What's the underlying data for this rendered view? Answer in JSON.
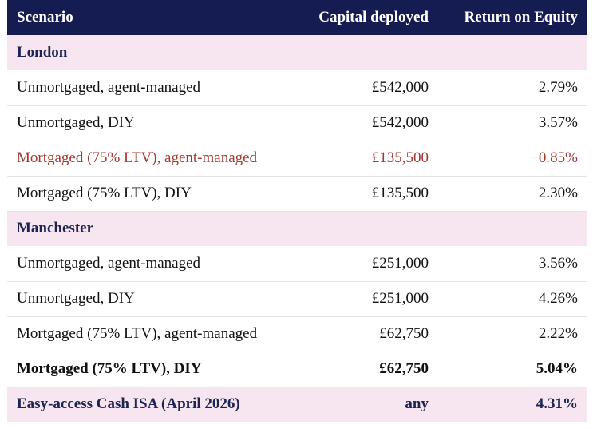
{
  "header": {
    "scenario": "Scenario",
    "capital": "Capital deployed",
    "roe": "Return on Equity"
  },
  "groups": [
    {
      "name": "London",
      "rows": [
        {
          "scenario": "Unmortgaged, agent-managed",
          "capital": "£542,000",
          "roe": "2.79%"
        },
        {
          "scenario": "Unmortgaged, DIY",
          "capital": "£542,000",
          "roe": "3.57%"
        },
        {
          "scenario": "Mortgaged (75% LTV), agent-managed",
          "capital": "£135,500",
          "roe": "−0.85%"
        },
        {
          "scenario": "Mortgaged (75% LTV), DIY",
          "capital": "£135,500",
          "roe": "2.30%"
        }
      ]
    },
    {
      "name": "Manchester",
      "rows": [
        {
          "scenario": "Unmortgaged, agent-managed",
          "capital": "£251,000",
          "roe": "3.56%"
        },
        {
          "scenario": "Unmortgaged, DIY",
          "capital": "£251,000",
          "roe": "4.26%"
        },
        {
          "scenario": "Mortgaged (75% LTV), agent-managed",
          "capital": "£62,750",
          "roe": "2.22%"
        },
        {
          "scenario": "Mortgaged (75% LTV), DIY",
          "capital": "£62,750",
          "roe": "5.04%"
        }
      ]
    }
  ],
  "benchmark": {
    "scenario": "Easy-access Cash ISA (April 2026)",
    "capital": "any",
    "roe": "4.31%"
  },
  "colors": {
    "header_bg": "#141c52",
    "group_bg": "#f7e6ef",
    "negative_text": "#a33a32"
  }
}
